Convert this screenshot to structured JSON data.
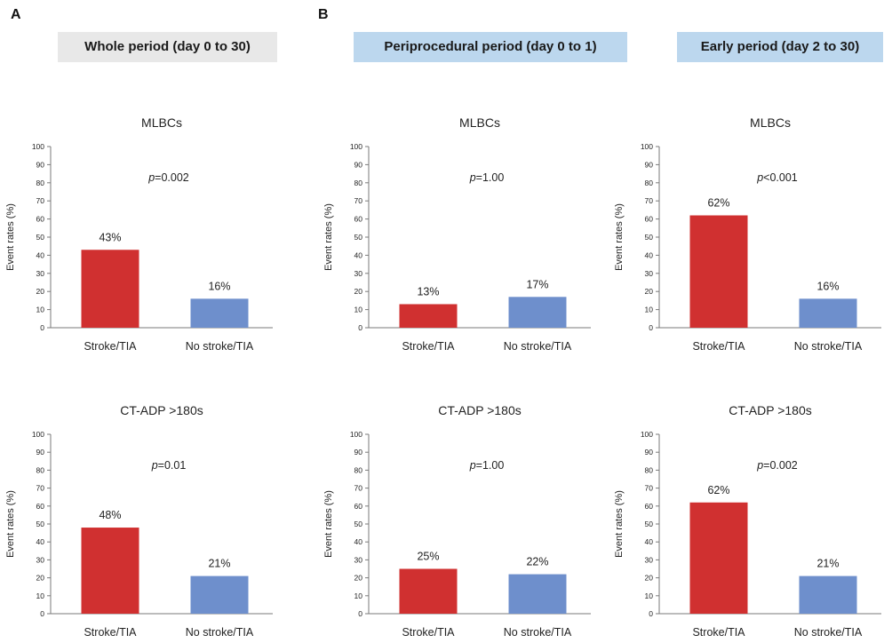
{
  "panels": {
    "a": {
      "letter": "A"
    },
    "b": {
      "letter": "B"
    }
  },
  "periods": [
    {
      "label": "Whole period (day 0 to 30)",
      "bg_color": "#e8e8e8"
    },
    {
      "label": "Periprocedural period (day 0 to 1)",
      "bg_color": "#bcd7ee"
    },
    {
      "label": "Early period (day 2 to 30)",
      "bg_color": "#bcd7ee"
    }
  ],
  "colors": {
    "stroke_bar": "#d03030",
    "no_stroke_bar": "#6e8fcc",
    "axis": "#7a7a7a"
  },
  "chart_data": [
    {
      "type": "bar",
      "period": "Whole period (day 0 to 30)",
      "title": "MLBCs",
      "categories": [
        "Stroke/TIA",
        "No stroke/TIA"
      ],
      "values": [
        43,
        16
      ],
      "value_labels": [
        "43%",
        "16%"
      ],
      "p_prefix": "p",
      "p_rest": "=0.002",
      "ylabel": "Event rates (%)",
      "ylim": [
        0,
        100
      ],
      "yticks": [
        0,
        10,
        20,
        30,
        40,
        50,
        60,
        70,
        80,
        90,
        100
      ],
      "grid": false,
      "legend": "none"
    },
    {
      "type": "bar",
      "period": "Periprocedural period (day 0 to 1)",
      "title": "MLBCs",
      "categories": [
        "Stroke/TIA",
        "No stroke/TIA"
      ],
      "values": [
        13,
        17
      ],
      "value_labels": [
        "13%",
        "17%"
      ],
      "p_prefix": "p",
      "p_rest": "=1.00",
      "ylabel": "Event rates (%)",
      "ylim": [
        0,
        100
      ],
      "yticks": [
        0,
        10,
        20,
        30,
        40,
        50,
        60,
        70,
        80,
        90,
        100
      ],
      "grid": false,
      "legend": "none"
    },
    {
      "type": "bar",
      "period": "Early period (day 2 to 30)",
      "title": "MLBCs",
      "categories": [
        "Stroke/TIA",
        "No stroke/TIA"
      ],
      "values": [
        62,
        16
      ],
      "value_labels": [
        "62%",
        "16%"
      ],
      "p_prefix": "p",
      "p_rest": "<0.001",
      "ylabel": "Event rates (%)",
      "ylim": [
        0,
        100
      ],
      "yticks": [
        0,
        10,
        20,
        30,
        40,
        50,
        60,
        70,
        80,
        90,
        100
      ],
      "grid": false,
      "legend": "none"
    },
    {
      "type": "bar",
      "period": "Whole period (day 0 to 30)",
      "title": "CT-ADP >180s",
      "categories": [
        "Stroke/TIA",
        "No stroke/TIA"
      ],
      "values": [
        48,
        21
      ],
      "value_labels": [
        "48%",
        "21%"
      ],
      "p_prefix": "p",
      "p_rest": "=0.01",
      "ylabel": "Event rates (%)",
      "ylim": [
        0,
        100
      ],
      "yticks": [
        0,
        10,
        20,
        30,
        40,
        50,
        60,
        70,
        80,
        90,
        100
      ],
      "grid": false,
      "legend": "none"
    },
    {
      "type": "bar",
      "period": "Periprocedural period (day 0 to 1)",
      "title": "CT-ADP >180s",
      "categories": [
        "Stroke/TIA",
        "No stroke/TIA"
      ],
      "values": [
        25,
        22
      ],
      "value_labels": [
        "25%",
        "22%"
      ],
      "p_prefix": "p",
      "p_rest": "=1.00",
      "ylabel": "Event rates (%)",
      "ylim": [
        0,
        100
      ],
      "yticks": [
        0,
        10,
        20,
        30,
        40,
        50,
        60,
        70,
        80,
        90,
        100
      ],
      "grid": false,
      "legend": "none"
    },
    {
      "type": "bar",
      "period": "Early period (day 2 to 30)",
      "title": "CT-ADP >180s",
      "categories": [
        "Stroke/TIA",
        "No stroke/TIA"
      ],
      "values": [
        62,
        21
      ],
      "value_labels": [
        "62%",
        "21%"
      ],
      "p_prefix": "p",
      "p_rest": "=0.002",
      "ylabel": "Event rates (%)",
      "ylim": [
        0,
        100
      ],
      "yticks": [
        0,
        10,
        20,
        30,
        40,
        50,
        60,
        70,
        80,
        90,
        100
      ],
      "grid": false,
      "legend": "none"
    }
  ]
}
